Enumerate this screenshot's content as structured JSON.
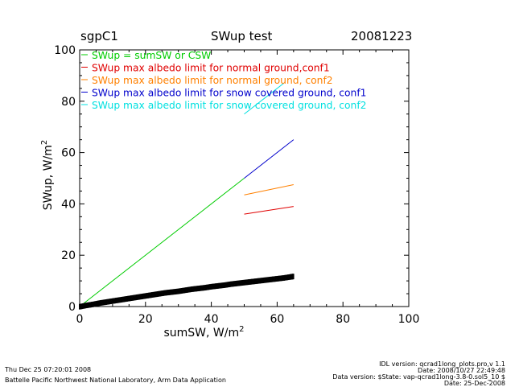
{
  "header": {
    "site": "sgpC1",
    "title": "SWup test",
    "date": "20081223"
  },
  "colors": {
    "green": "#00cc00",
    "red": "#e00000",
    "orange": "#ff8000",
    "blue": "#0000cc",
    "cyan": "#00e0e0",
    "black": "#000000"
  },
  "chart_data": {
    "type": "scatter",
    "title": "SWup test",
    "xlabel": "sumSW, W/m",
    "xlabel_sup": "2",
    "ylabel": "SWup, W/m",
    "ylabel_sup": "2",
    "xlim": [
      0,
      100
    ],
    "ylim": [
      0,
      100
    ],
    "xticks": [
      0,
      20,
      40,
      60,
      80,
      100
    ],
    "yticks": [
      0,
      20,
      40,
      60,
      80,
      100
    ],
    "grid": false,
    "legend_position": "top-left",
    "legend": [
      {
        "label": "SWup = sumSW or CSW",
        "color": "#00cc00"
      },
      {
        "label": "SWup max albedo limit for normal ground,conf1",
        "color": "#e00000"
      },
      {
        "label": "SWup max albedo limit for normal ground, conf2",
        "color": "#ff8000"
      },
      {
        "label": "SWup max albedo limit for snow covered ground, conf1",
        "color": "#0000cc"
      },
      {
        "label": "SWup max albedo limit for snow covered ground, conf2",
        "color": "#00e0e0"
      }
    ],
    "series": [
      {
        "name": "SWup = sumSW or CSW",
        "color": "#00cc00",
        "kind": "line",
        "x": [
          0,
          50
        ],
        "y": [
          0,
          50
        ]
      },
      {
        "name": "SWup max albedo limit for normal ground,conf1",
        "color": "#e00000",
        "kind": "line",
        "x": [
          50,
          65
        ],
        "y": [
          36,
          39
        ]
      },
      {
        "name": "SWup max albedo limit for normal ground, conf2",
        "color": "#ff8000",
        "kind": "line",
        "x": [
          50,
          65
        ],
        "y": [
          43.5,
          47.5
        ]
      },
      {
        "name": "SWup max albedo limit for snow covered ground, conf1",
        "color": "#0000cc",
        "kind": "line",
        "x": [
          50,
          65
        ],
        "y": [
          50,
          65
        ]
      },
      {
        "name": "SWup max albedo limit for snow covered ground, conf2",
        "color": "#00e0e0",
        "kind": "line",
        "x": [
          50,
          62
        ],
        "y": [
          75,
          87
        ]
      },
      {
        "name": "observations",
        "color": "#000000",
        "kind": "scatter",
        "x": [
          0,
          2,
          4,
          6,
          8,
          10,
          12,
          14,
          16,
          18,
          20,
          22,
          24,
          26,
          28,
          30,
          32,
          34,
          36,
          38,
          40,
          42,
          44,
          46,
          48,
          50,
          52,
          54,
          56,
          58,
          60,
          62,
          64,
          65
        ],
        "y": [
          0,
          0.5,
          0.9,
          1.4,
          1.8,
          2.2,
          2.6,
          3.0,
          3.4,
          3.8,
          4.2,
          4.6,
          5.0,
          5.4,
          5.7,
          6.0,
          6.4,
          6.8,
          7.1,
          7.4,
          7.8,
          8.1,
          8.4,
          8.8,
          9.1,
          9.4,
          9.7,
          10.0,
          10.3,
          10.6,
          10.9,
          11.2,
          11.6,
          11.8
        ]
      }
    ]
  },
  "footer": {
    "timestamp": "Thu Dec 25 07:20:01 2008",
    "lab": "Battelle Pacific Northwest National Laboratory, Arm Data Application",
    "idl_version": "IDL version: qcrad1long_plots.pro,v 1.1",
    "idl_date": "Date: 2008/10/27 22:49:48",
    "data_version": "Data version: $State: vap-qcrad1long-3.8-0.sol5_10 $",
    "data_date": "Date: 25-Dec-2008"
  }
}
